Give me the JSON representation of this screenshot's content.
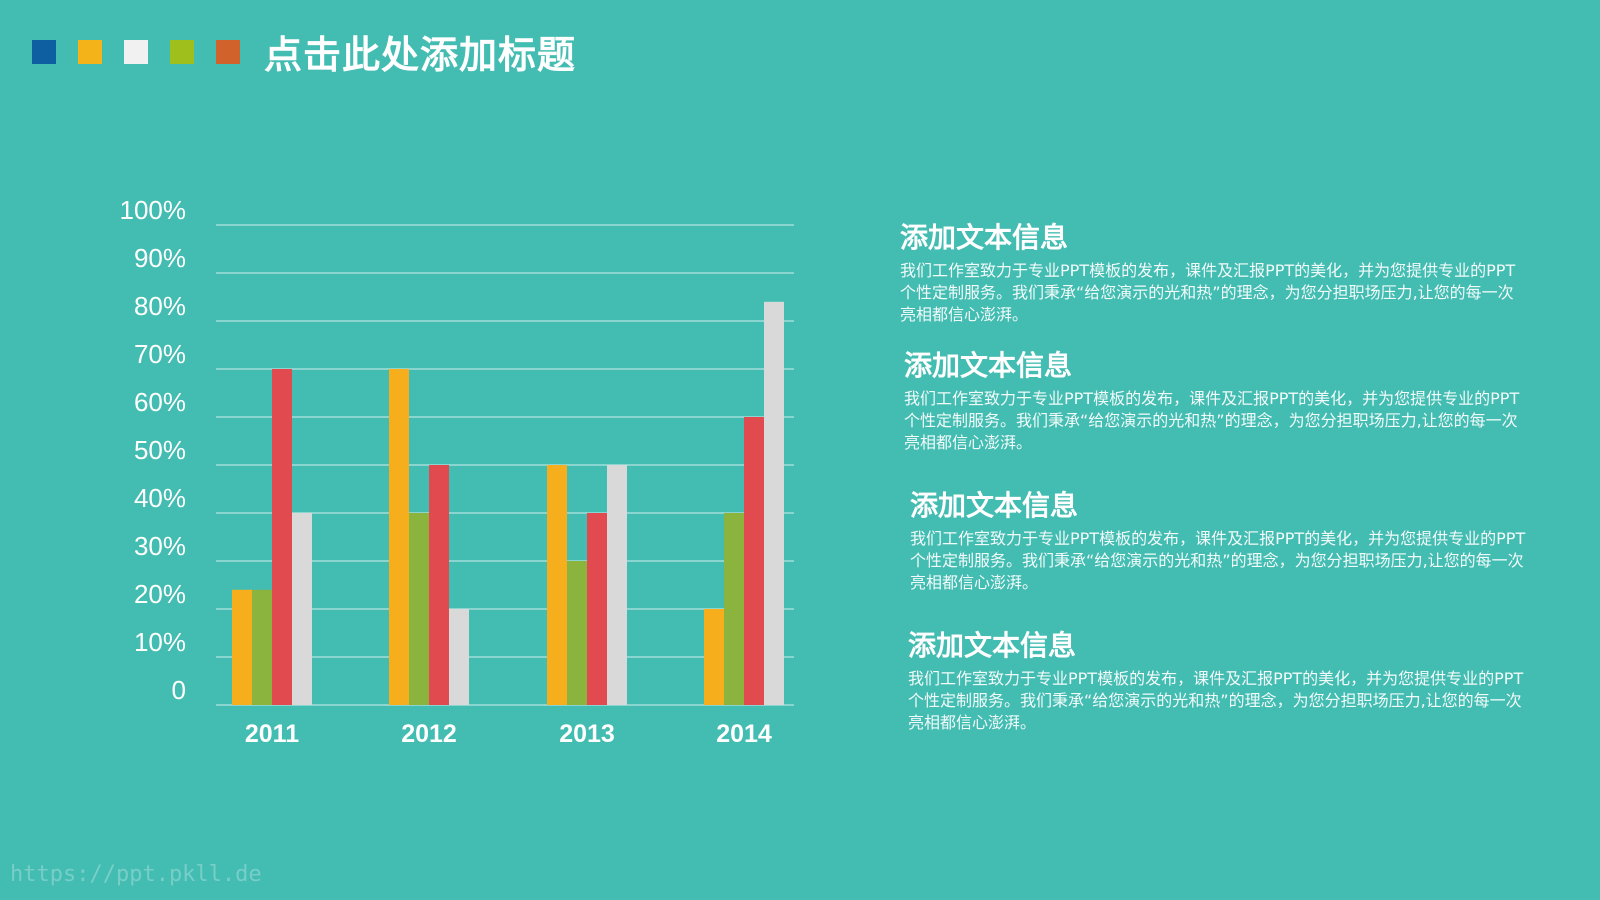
{
  "header": {
    "title": "点击此处添加标题",
    "swatches": [
      "#0e5fa1",
      "#f5b31a",
      "#f1f1f1",
      "#9fbf1d",
      "#d2622c"
    ]
  },
  "chart_data": {
    "type": "bar",
    "categories": [
      "2011",
      "2012",
      "2013",
      "2014"
    ],
    "series": [
      {
        "color": "#f6ae1d",
        "values": [
          24,
          70,
          50,
          20
        ]
      },
      {
        "color": "#8ab43d",
        "values": [
          24,
          40,
          30,
          40
        ]
      },
      {
        "color": "#e14a4e",
        "values": [
          70,
          50,
          40,
          60
        ]
      },
      {
        "color": "#d9d9d9",
        "values": [
          40,
          20,
          50,
          84
        ]
      }
    ],
    "y_ticks": [
      "0",
      "10%",
      "20%",
      "30%",
      "40%",
      "50%",
      "60%",
      "70%",
      "80%",
      "90%",
      "100%"
    ],
    "ylim": [
      0,
      100
    ],
    "grid": true,
    "legend": "none"
  },
  "text_blocks": [
    {
      "heading": "添加文本信息",
      "body": "我们工作室致力于专业PPT模板的发布，课件及汇报PPT的美化，并为您提供专业的PPT个性定制服务。我们秉承“给您演示的光和热”的理念，为您分担职场压力,让您的每一次亮相都信心澎湃。"
    },
    {
      "heading": "添加文本信息",
      "body": "我们工作室致力于专业PPT模板的发布，课件及汇报PPT的美化，并为您提供专业的PPT个性定制服务。我们秉承“给您演示的光和热”的理念，为您分担职场压力,让您的每一次亮相都信心澎湃。"
    },
    {
      "heading": "添加文本信息",
      "body": "我们工作室致力于专业PPT模板的发布，课件及汇报PPT的美化，并为您提供专业的PPT个性定制服务。我们秉承“给您演示的光和热”的理念，为您分担职场压力,让您的每一次亮相都信心澎湃。"
    },
    {
      "heading": "添加文本信息",
      "body": "我们工作室致力于专业PPT模板的发布，课件及汇报PPT的美化，并为您提供专业的PPT个性定制服务。我们秉承“给您演示的光和热”的理念，为您分担职场压力,让您的每一次亮相都信心澎湃。"
    }
  ],
  "watermark": "https://ppt.pkll.de"
}
